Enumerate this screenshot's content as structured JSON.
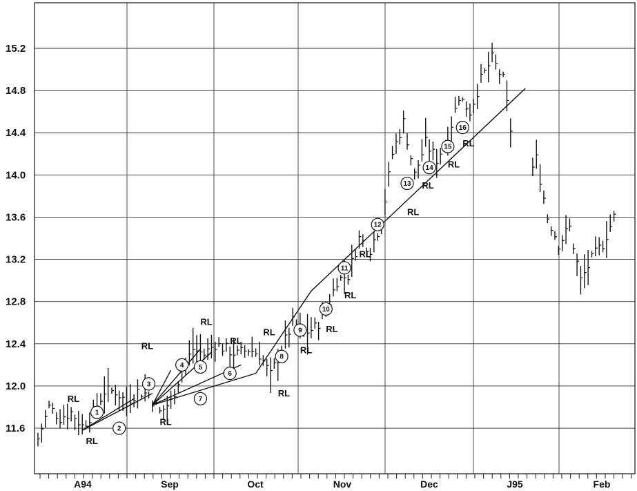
{
  "chart_data": {
    "type": "bar",
    "subtype": "ohlc-price-bars",
    "title": "",
    "xlabel": "",
    "ylabel": "",
    "ylim": [
      11.4,
      15.5
    ],
    "yticks": [
      "11.6",
      "12.0",
      "12.4",
      "12.8",
      "13.2",
      "13.6",
      "14.0",
      "14.4",
      "14.8",
      "15.2"
    ],
    "grid": true,
    "months": [
      "A94",
      "Sep",
      "Oct",
      "Nov",
      "Dec",
      "J95",
      "Feb"
    ],
    "price_points": [
      [
        0,
        11.5
      ],
      [
        3,
        11.8
      ],
      [
        6,
        11.7
      ],
      [
        9,
        11.75
      ],
      [
        12,
        11.62
      ],
      [
        15,
        11.75
      ],
      [
        18,
        11.95
      ],
      [
        21,
        11.95
      ],
      [
        24,
        11.85
      ],
      [
        27,
        11.95
      ],
      [
        30,
        11.92
      ],
      [
        33,
        11.75
      ],
      [
        36,
        11.85
      ],
      [
        39,
        12.15
      ],
      [
        42,
        12.35
      ],
      [
        45,
        12.3
      ],
      [
        48,
        12.4
      ],
      [
        51,
        12.35
      ],
      [
        54,
        12.3
      ],
      [
        57,
        12.35
      ],
      [
        60,
        12.3
      ],
      [
        63,
        12.1
      ],
      [
        66,
        12.35
      ],
      [
        69,
        12.6
      ],
      [
        72,
        12.5
      ],
      [
        75,
        12.55
      ],
      [
        78,
        12.7
      ],
      [
        81,
        13.0
      ],
      [
        84,
        13.05
      ],
      [
        87,
        13.4
      ],
      [
        90,
        13.3
      ],
      [
        93,
        13.55
      ],
      [
        96,
        14.2
      ],
      [
        99,
        14.5
      ],
      [
        102,
        14.0
      ],
      [
        105,
        14.3
      ],
      [
        108,
        14.15
      ],
      [
        111,
        14.35
      ],
      [
        114,
        14.75
      ],
      [
        117,
        14.6
      ],
      [
        120,
        14.9
      ],
      [
        123,
        15.1
      ],
      [
        126,
        14.9
      ],
      [
        129,
        14.2
      ],
      [
        132,
        13.9
      ],
      [
        135,
        14.15
      ],
      [
        138,
        13.6
      ],
      [
        141,
        13.35
      ],
      [
        144,
        13.5
      ],
      [
        147,
        13.0
      ],
      [
        150,
        13.2
      ],
      [
        153,
        13.35
      ],
      [
        156,
        13.6
      ]
    ],
    "support_lines": [
      {
        "from": [
          12,
          11.58
        ],
        "to": [
          26,
          11.88
        ]
      },
      {
        "from": [
          12,
          11.58
        ],
        "to": [
          31,
          11.93
        ]
      },
      {
        "from": [
          31,
          11.82
        ],
        "to": [
          36,
          12.15
        ]
      },
      {
        "from": [
          31,
          11.82
        ],
        "to": [
          44,
          12.35
        ]
      },
      {
        "from": [
          31,
          11.82
        ],
        "to": [
          47,
          12.32
        ]
      },
      {
        "from": [
          31,
          11.82
        ],
        "to": [
          55,
          12.2
        ]
      },
      {
        "from": [
          31,
          11.82
        ],
        "to": [
          59,
          12.12
        ]
      },
      {
        "from": [
          59,
          12.12
        ],
        "to": [
          74,
          12.9
        ]
      },
      {
        "from": [
          74,
          12.9
        ],
        "to": [
          132,
          14.82
        ]
      }
    ],
    "annotations": [
      {
        "label": "RL",
        "x": 8,
        "y": 11.85,
        "circle": "1",
        "cx": 16,
        "cy": 11.75
      },
      {
        "label": "RL",
        "x": 13,
        "y": 11.45,
        "circle": "2",
        "cx": 22,
        "cy": 11.6
      },
      {
        "label": "RL",
        "x": 33,
        "y": 11.63,
        "circle": "3",
        "cx": 30,
        "cy": 12.02
      },
      {
        "label": "RL",
        "x": 28,
        "y": 12.35,
        "circle": "4",
        "cx": 39,
        "cy": 12.2
      },
      {
        "label": "RL",
        "x": 44,
        "y": 12.58,
        "circle": "5",
        "cx": 44,
        "cy": 12.18
      },
      {
        "label": "RL",
        "x": 52,
        "y": 12.4,
        "circle": "6",
        "cx": 52,
        "cy": 12.12
      },
      {
        "label": "RL",
        "x": 61,
        "y": 12.48,
        "circle": "7",
        "cx": 44,
        "cy": 11.88
      },
      {
        "label": "RL",
        "x": 65,
        "y": 11.9,
        "circle": "8",
        "cx": 66,
        "cy": 12.28
      },
      {
        "label": "RL",
        "x": 71,
        "y": 12.31,
        "circle": "9",
        "cx": 71,
        "cy": 12.53
      },
      {
        "label": "RL",
        "x": 78,
        "y": 12.51,
        "circle": "10",
        "cx": 78,
        "cy": 12.73
      },
      {
        "label": "RL",
        "x": 83,
        "y": 12.83,
        "circle": "11",
        "cx": 83,
        "cy": 13.12
      },
      {
        "label": "RL",
        "x": 87,
        "y": 13.22,
        "circle": "12",
        "cx": 92,
        "cy": 13.53
      },
      {
        "label": "RL",
        "x": 100,
        "y": 13.62,
        "circle": "13",
        "cx": 100,
        "cy": 13.92
      },
      {
        "label": "RL",
        "x": 104,
        "y": 13.87,
        "circle": "14",
        "cx": 106,
        "cy": 14.07
      },
      {
        "label": "RL",
        "x": 111,
        "y": 14.07,
        "circle": "15",
        "cx": 111,
        "cy": 14.27
      },
      {
        "label": "RL",
        "x": 115,
        "y": 14.27,
        "circle": "16",
        "cx": 115,
        "cy": 14.45
      }
    ]
  }
}
